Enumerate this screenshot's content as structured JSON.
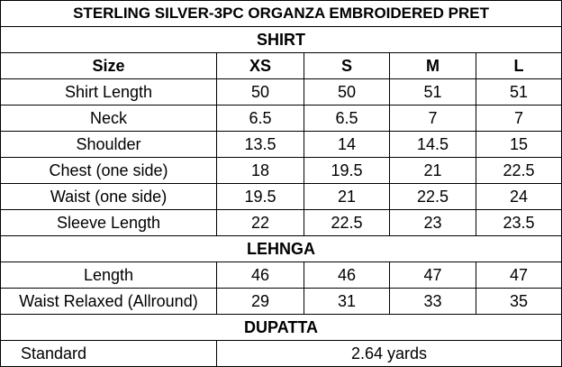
{
  "title": "STERLING SILVER-3PC ORGANZA EMBROIDERED PRET",
  "shirt": {
    "heading": "SHIRT",
    "size_label": "Size",
    "sizes": [
      "XS",
      "S",
      "M",
      "L"
    ],
    "rows": [
      {
        "label": "Shirt Length",
        "values": [
          "50",
          "50",
          "51",
          "51"
        ]
      },
      {
        "label": "Neck",
        "values": [
          "6.5",
          "6.5",
          "7",
          "7"
        ]
      },
      {
        "label": "Shoulder",
        "values": [
          "13.5",
          "14",
          "14.5",
          "15"
        ]
      },
      {
        "label": "Chest (one side)",
        "values": [
          "18",
          "19.5",
          "21",
          "22.5"
        ]
      },
      {
        "label": "Waist (one side)",
        "values": [
          "19.5",
          "21",
          "22.5",
          "24"
        ]
      },
      {
        "label": "Sleeve Length",
        "values": [
          "22",
          "22.5",
          "23",
          "23.5"
        ]
      }
    ]
  },
  "lehnga": {
    "heading": "LEHNGA",
    "rows": [
      {
        "label": "Length",
        "values": [
          "46",
          "46",
          "47",
          "47"
        ]
      },
      {
        "label": "Waist Relaxed (Allround)",
        "values": [
          "29",
          "31",
          "33",
          "35"
        ]
      }
    ]
  },
  "dupatta": {
    "heading": "DUPATTA",
    "rows": [
      {
        "label": "Standard",
        "value": "2.64 yards"
      }
    ]
  }
}
